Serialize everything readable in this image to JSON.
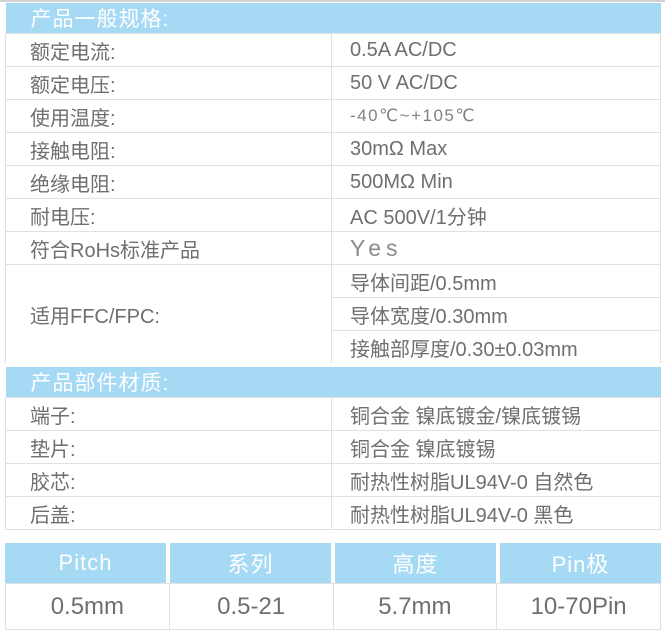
{
  "colors": {
    "accent_cyan": "#a6daf4",
    "header_text": "#ffffff",
    "body_text": "#6f6f6f",
    "border": "#e0e0e0"
  },
  "spec_table": {
    "general": {
      "title": "产品一般规格:",
      "rows": [
        {
          "label": "额定电流:",
          "value": "0.5A AC/DC"
        },
        {
          "label": "额定电压:",
          "value": "50 V  AC/DC"
        },
        {
          "label": "使用温度:",
          "value": "-40℃~+105℃"
        },
        {
          "label": "接触电阻:",
          "value": "30mΩ Max"
        },
        {
          "label": "绝缘电阻:",
          "value": "500MΩ Min"
        },
        {
          "label": "耐电压:",
          "value": "AC 500V/1分钟"
        },
        {
          "label": "符合RoHs标准产品",
          "value": "Yes"
        }
      ]
    },
    "ffc": {
      "label": "适用FFC/FPC:",
      "values": [
        "导体间距/0.5mm",
        "导体宽度/0.30mm",
        "接触部厚度/0.30±0.03mm"
      ]
    },
    "materials": {
      "title": "产品部件材质:",
      "rows": [
        {
          "label": "端子:",
          "value": "铜合金 镍底镀金/镍底镀锡"
        },
        {
          "label": "垫片:",
          "value": "铜合金 镍底镀锡"
        },
        {
          "label": "胶芯:",
          "value": "耐热性树脂UL94V-0 自然色"
        },
        {
          "label": "后盖:",
          "value": "耐热性树脂UL94V-0 黑色"
        }
      ]
    }
  },
  "summary_table": {
    "headers": [
      "Pitch",
      "系列",
      "高度",
      "Pin极"
    ],
    "values": [
      "0.5mm",
      "0.5-21",
      "5.7mm",
      "10-70Pin"
    ]
  }
}
